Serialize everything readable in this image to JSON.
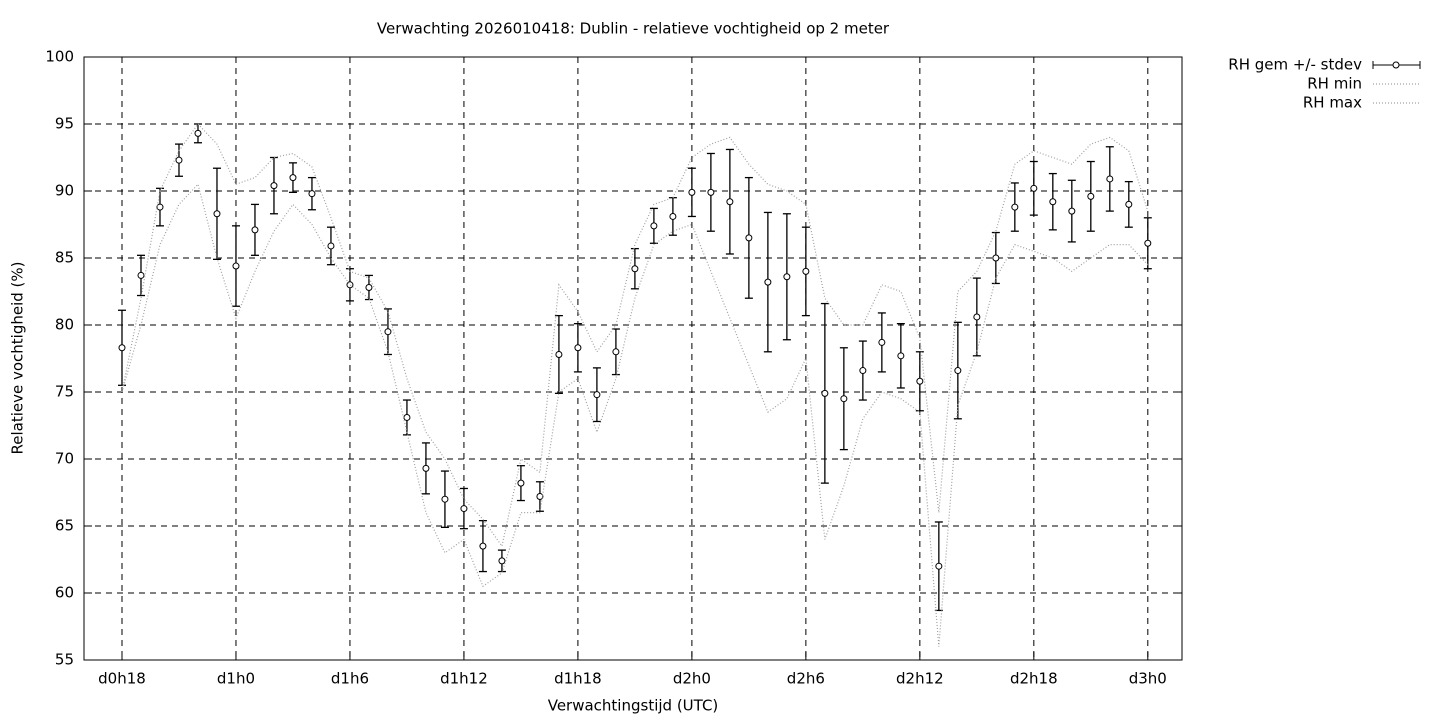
{
  "chart_data": {
    "type": "errorbar",
    "title": "Verwachting 2026010418: Dublin - relatieve vochtigheid op 2 meter",
    "x_label": "Verwachtingstijd (UTC)",
    "y_label": "Relatieve vochtigheid (%)",
    "x": [
      18,
      19,
      20,
      21,
      22,
      23,
      24,
      25,
      26,
      27,
      28,
      29,
      30,
      31,
      32,
      33,
      34,
      35,
      36,
      37,
      38,
      39,
      40,
      41,
      42,
      43,
      44,
      45,
      46,
      47,
      48,
      49,
      50,
      51,
      52,
      53,
      54,
      55,
      56,
      57,
      58,
      59,
      60,
      61,
      62,
      63,
      64,
      65,
      66,
      67,
      68,
      69,
      70,
      71,
      72
    ],
    "xlim": [
      16,
      73.8
    ],
    "xticks": [
      {
        "value": 18,
        "label": "d0h18"
      },
      {
        "value": 24,
        "label": "d1h0"
      },
      {
        "value": 30,
        "label": "d1h6"
      },
      {
        "value": 36,
        "label": "d1h12"
      },
      {
        "value": 42,
        "label": "d1h18"
      },
      {
        "value": 48,
        "label": "d2h0"
      },
      {
        "value": 54,
        "label": "d2h6"
      },
      {
        "value": 60,
        "label": "d2h12"
      },
      {
        "value": 66,
        "label": "d2h18"
      },
      {
        "value": 72,
        "label": "d3h0"
      }
    ],
    "ylim": [
      55,
      100
    ],
    "yticks": [
      55,
      60,
      65,
      70,
      75,
      80,
      85,
      90,
      95,
      100
    ],
    "grid": true,
    "legend": "outside-top-right",
    "series": [
      {
        "name": "RH gem +/- stdev",
        "color": "#000000",
        "style": "errorbar",
        "values": [
          78.3,
          83.7,
          88.8,
          92.3,
          94.3,
          88.3,
          84.4,
          87.1,
          90.4,
          91.0,
          89.8,
          85.9,
          83.0,
          82.8,
          79.5,
          73.1,
          69.3,
          67.0,
          66.3,
          63.5,
          62.4,
          68.2,
          67.2,
          77.8,
          78.3,
          74.8,
          78.0,
          84.2,
          87.4,
          88.1,
          89.9,
          89.9,
          89.2,
          86.5,
          83.2,
          83.6,
          84.0,
          74.9,
          74.5,
          76.6,
          78.7,
          77.7,
          75.8,
          62.0,
          76.6,
          80.6,
          85.0,
          88.8,
          90.2,
          89.2,
          88.5,
          89.6,
          90.9,
          89.0,
          86.1
        ],
        "errors": [
          2.8,
          1.5,
          1.4,
          1.2,
          0.7,
          3.4,
          3.0,
          1.9,
          2.1,
          1.1,
          1.2,
          1.4,
          1.2,
          0.9,
          1.7,
          1.3,
          1.9,
          2.1,
          1.5,
          1.9,
          0.8,
          1.3,
          1.1,
          2.9,
          1.8,
          2.0,
          1.7,
          1.5,
          1.3,
          1.4,
          1.8,
          2.9,
          3.9,
          4.5,
          5.2,
          4.7,
          3.3,
          6.7,
          3.8,
          2.2,
          2.2,
          2.4,
          2.2,
          3.3,
          3.6,
          2.9,
          1.9,
          1.8,
          2.0,
          2.1,
          2.3,
          2.6,
          2.4,
          1.7,
          1.9
        ]
      },
      {
        "name": "RH min",
        "color": "#a0a0a0",
        "style": "dotted",
        "values": [
          75,
          80,
          86,
          89,
          90.5,
          85,
          80.5,
          84,
          87,
          89,
          87.5,
          85,
          83,
          82,
          78,
          72,
          66,
          63,
          64,
          60.5,
          61.5,
          66,
          66,
          75,
          76,
          72,
          76,
          82,
          86,
          87,
          87.5,
          84,
          80.5,
          77,
          73.5,
          74.5,
          77.5,
          64,
          68,
          73,
          75,
          74.5,
          73.5,
          56,
          74,
          78,
          83.5,
          86,
          85.5,
          85,
          84,
          85,
          86,
          86,
          84.5
        ]
      },
      {
        "name": "RH max",
        "color": "#a0a0a0",
        "style": "dotted",
        "values": [
          75,
          82,
          90,
          93,
          95,
          93.5,
          90.5,
          91,
          92.5,
          92.8,
          91.8,
          88,
          84,
          83.5,
          81,
          76,
          72,
          70,
          67,
          65.5,
          63.5,
          70,
          69,
          83,
          81,
          78,
          80,
          86,
          89,
          89.5,
          92.5,
          93.5,
          94,
          92,
          90.5,
          90,
          89,
          82,
          80,
          80,
          83,
          82.5,
          79,
          66,
          82.5,
          84,
          87,
          92,
          93,
          92.5,
          92,
          93.5,
          94,
          93,
          88.5
        ]
      }
    ]
  }
}
